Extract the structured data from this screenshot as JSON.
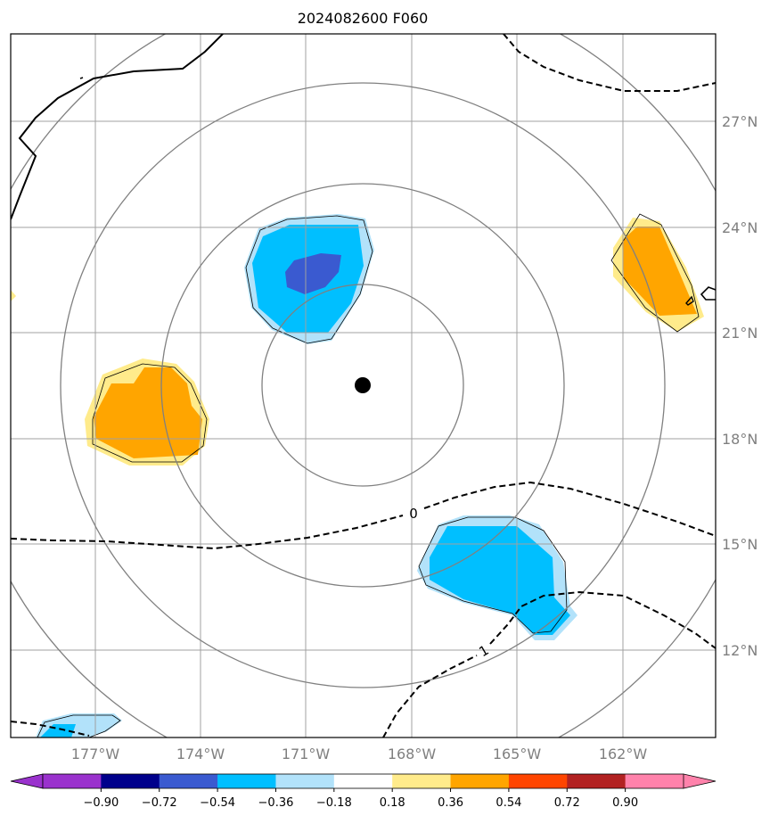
{
  "title": "2024082600 F060",
  "longitude_labels": [
    "177°W",
    "174°W",
    "171°W",
    "168°W",
    "165°W",
    "162°W"
  ],
  "latitude_labels": [
    "27°N",
    "24°N",
    "21°N",
    "18°N",
    "15°N",
    "12°N"
  ],
  "contour_labels": [
    "0",
    "1"
  ],
  "storm_center": {
    "lon": "169.5°W",
    "lat": "19.5°N"
  },
  "colorbar": {
    "ticks": [
      "−0.90",
      "−0.72",
      "−0.54",
      "−0.36",
      "−0.18",
      "0.18",
      "0.36",
      "0.54",
      "0.72",
      "0.90"
    ],
    "colors": [
      "#9a32cd",
      "#00008b",
      "#3a5ad0",
      "#00bfff",
      "#b2e2fa",
      "#ffffff",
      "#ffeb8b",
      "#ffa500",
      "#ff4500",
      "#b22222",
      "#ff82ab"
    ]
  },
  "colors": {
    "grid": "#a0a0a0",
    "range_rings": "#808080",
    "coast": "#000000"
  }
}
